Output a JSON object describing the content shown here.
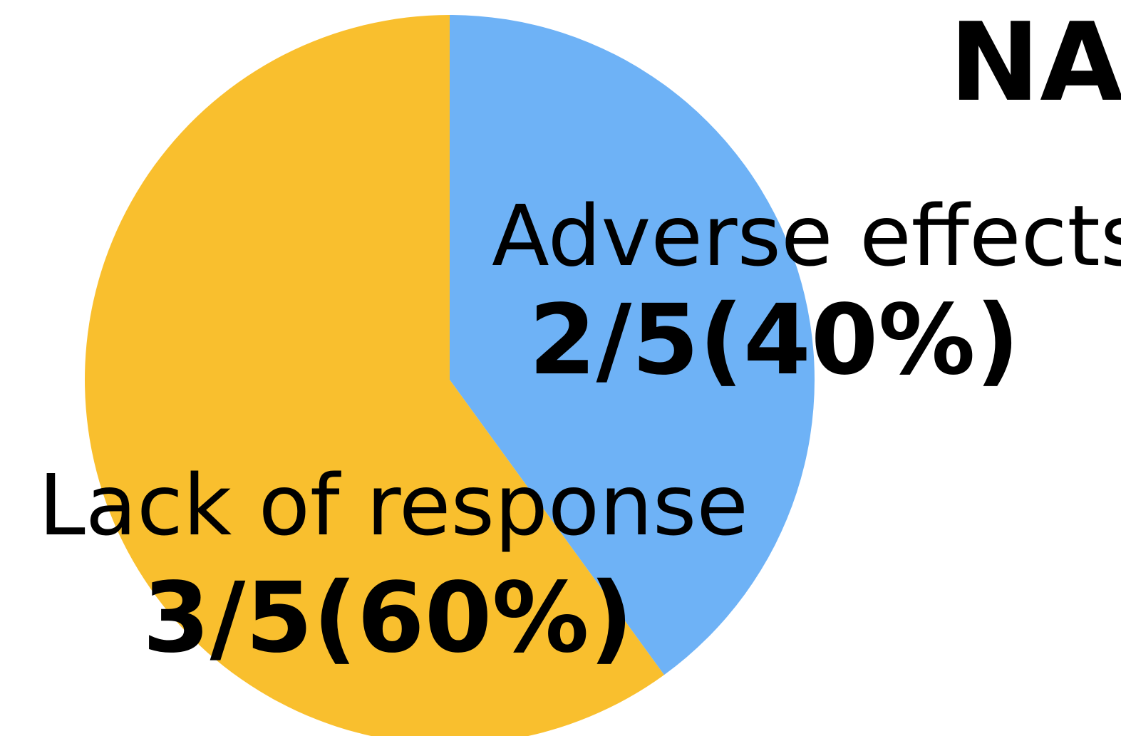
{
  "chart_data": {
    "type": "pie",
    "title": "NAI",
    "slices": [
      {
        "label": "Adverse effects",
        "value_text": "2/5(40%)",
        "count": 2,
        "total": 5,
        "percent": 40,
        "color": "#6EB2F6"
      },
      {
        "label": "Lack of response",
        "value_text": "3/5(60%)",
        "count": 3,
        "total": 5,
        "percent": 60,
        "color": "#F9BF2E"
      }
    ]
  }
}
